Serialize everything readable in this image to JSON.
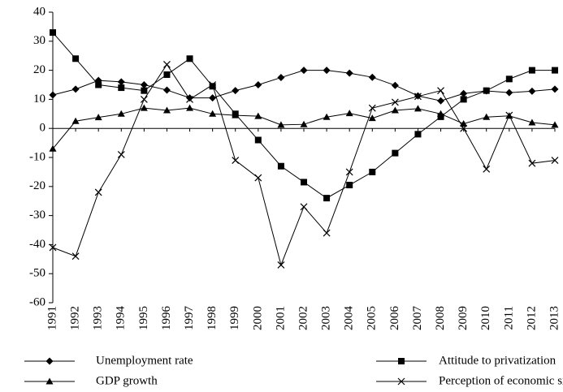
{
  "chart_data": {
    "type": "line",
    "categories": [
      "1991",
      "1992",
      "1993",
      "1994",
      "1995",
      "1996",
      "1997",
      "1998",
      "1999",
      "2000",
      "2001",
      "2002",
      "2003",
      "2004",
      "2005",
      "2006",
      "2007",
      "2008",
      "2009",
      "2010",
      "2011",
      "2012",
      "2013"
    ],
    "series": [
      {
        "name": "Unemployment rate",
        "color": "#000000",
        "marker": "diamond",
        "values": [
          11.5,
          13.5,
          16.5,
          16,
          15,
          13.2,
          10.5,
          10.5,
          13,
          15,
          17.5,
          20,
          20,
          19,
          17.6,
          14.8,
          11.2,
          9.5,
          12,
          12.9,
          12.3,
          12.8,
          13.5
        ]
      },
      {
        "name": "Attitude to privatization",
        "color": "#000000",
        "marker": "square",
        "values": [
          33,
          24,
          15,
          14,
          13,
          18.5,
          24,
          14.5,
          5,
          -4,
          -13,
          -18.5,
          -24,
          -19.5,
          -15,
          -8.5,
          -2,
          4,
          10,
          13,
          17,
          20,
          20
        ]
      },
      {
        "name": "GDP growth",
        "color": "#000000",
        "marker": "triangle",
        "values": [
          -7,
          2.5,
          3.8,
          5,
          7,
          6.2,
          7,
          5,
          4.5,
          4.2,
          1.2,
          1.4,
          3.9,
          5.2,
          3.5,
          6.2,
          6.8,
          5,
          1.6,
          3.9,
          4.3,
          2,
          1.2
        ]
      },
      {
        "name": "Perception of economic situation",
        "color": "#000000",
        "marker": "cross",
        "values": [
          -41,
          -44,
          -22,
          -9,
          10,
          22,
          10,
          15,
          -11,
          -17,
          -47,
          -27,
          -36,
          -15,
          7,
          9,
          11,
          13,
          0,
          -14,
          4.5,
          -12,
          -11
        ]
      }
    ],
    "ylim": [
      -60,
      40
    ],
    "yticks": [
      -60,
      -50,
      -40,
      -30,
      -20,
      -10,
      0,
      10,
      20,
      30,
      40
    ],
    "grid": false,
    "legend": "bottom"
  }
}
